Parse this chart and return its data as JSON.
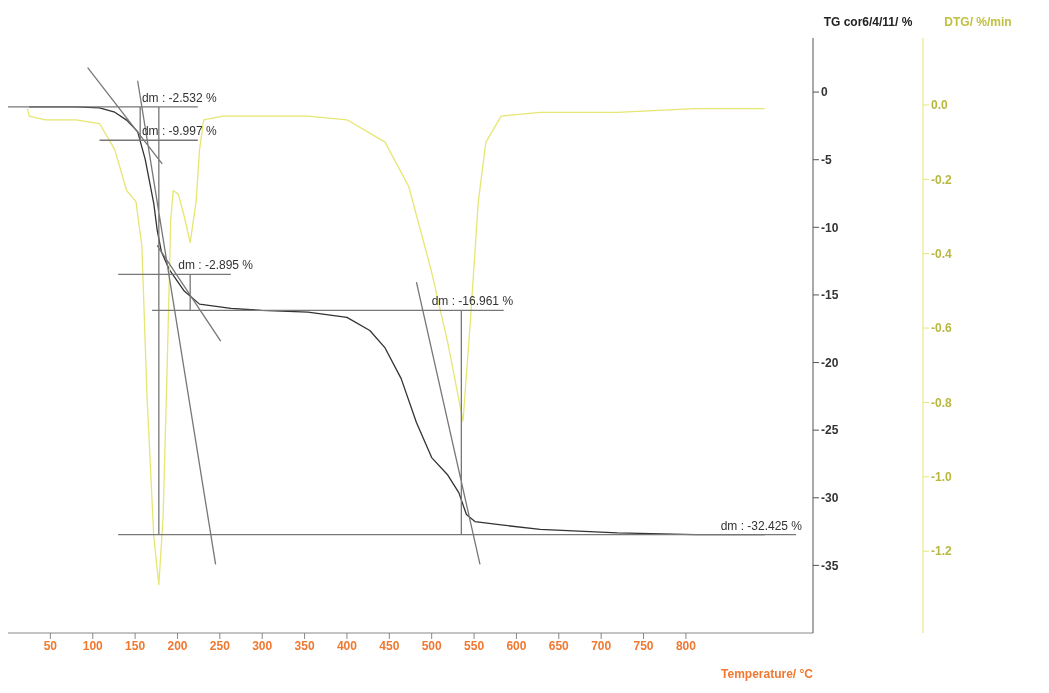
{
  "chart_data": {
    "type": "line",
    "xlabel": "Temperature/ °C",
    "ylabel": "TG cor6/4/11/ %",
    "y2label": "DTG/ %/min",
    "xlim": [
      0,
      950
    ],
    "xticks": [
      50,
      100,
      150,
      200,
      250,
      300,
      350,
      400,
      450,
      500,
      550,
      600,
      650,
      700,
      750,
      800
    ],
    "ylim": [
      -40,
      4
    ],
    "yticks": [
      0,
      -5,
      -10,
      -15,
      -20,
      -25,
      -30,
      -35
    ],
    "y2lim": [
      -1.42,
      0.18
    ],
    "y2ticks": [
      {
        "value": 0,
        "label": "0.0"
      },
      -0.2,
      -0.4,
      -0.6,
      -0.8,
      {
        "value": -1,
        "label": "-1.0"
      },
      -1.2
    ],
    "marker": "none",
    "line_style": "solid",
    "series": [
      {
        "color": "#333333",
        "x": [
          25,
          80,
          108,
          126,
          140,
          153,
          162,
          172,
          176,
          181,
          190,
          208,
          226,
          263,
          299,
          354,
          400,
          427,
          445,
          464,
          482,
          500,
          519,
          532,
          541,
          551,
          582,
          628,
          719,
          811,
          893
        ],
        "values": [
          -1.1,
          -1.1,
          -1.17,
          -1.49,
          -2.07,
          -2.92,
          -4.99,
          -8.23,
          -10.18,
          -11.8,
          -13.09,
          -14.71,
          -15.68,
          -16.0,
          -16.14,
          -16.27,
          -16.66,
          -17.63,
          -18.92,
          -21.19,
          -24.43,
          -27.03,
          -28.32,
          -29.62,
          -31.24,
          -31.76,
          -32.01,
          -32.34,
          -32.6,
          -32.73,
          -32.73
        ]
      },
      {
        "color": "#e6e673",
        "axis": "y2",
        "x": [
          23,
          25,
          44,
          80,
          108,
          126,
          140,
          151,
          158,
          164,
          172,
          178,
          183,
          188,
          192,
          195,
          201,
          208,
          215,
          222,
          226,
          231,
          254,
          308,
          354,
          400,
          445,
          473,
          500,
          519,
          537,
          546,
          555,
          564,
          582,
          628,
          719,
          811,
          893
        ],
        "values": [
          -0.01,
          -0.03,
          -0.04,
          -0.04,
          -0.05,
          -0.12,
          -0.23,
          -0.26,
          -0.38,
          -0.78,
          -1.16,
          -1.29,
          -1.11,
          -0.69,
          -0.31,
          -0.23,
          -0.24,
          -0.3,
          -0.37,
          -0.26,
          -0.12,
          -0.04,
          -0.03,
          -0.03,
          -0.03,
          -0.04,
          -0.1,
          -0.22,
          -0.45,
          -0.64,
          -0.85,
          -0.57,
          -0.26,
          -0.1,
          -0.03,
          -0.02,
          -0.02,
          -0.01,
          -0.01
        ]
      },
      {
        "color": "#777777",
        "x": [
          0,
          224,
          null,
          108,
          224,
          null,
          130,
          263,
          null,
          170,
          585,
          null,
          130,
          930,
          null,
          94,
          182,
          null,
          153,
          245,
          null,
          176,
          251,
          null,
          482,
          557,
          null,
          178,
          178,
          null,
          156,
          156,
          null,
          215,
          215,
          null,
          535,
          535
        ],
        "values": [
          -1.1,
          -1.1,
          null,
          -3.56,
          -3.56,
          null,
          -13.48,
          -13.48,
          null,
          -16.14,
          -16.14,
          null,
          -32.73,
          -32.73,
          null,
          1.81,
          -5.31,
          null,
          0.84,
          -34.93,
          null,
          -11.34,
          -18.41,
          null,
          -14.06,
          -34.93,
          null,
          -1.1,
          -32.73,
          null,
          -1.1,
          -3.56,
          null,
          -13.48,
          -16.14,
          null,
          -16.14,
          -32.73
        ]
      }
    ],
    "annotations": [
      {
        "text": "dm : -2.532 %",
        "x": 158,
        "y": -1.1
      },
      {
        "text": "dm : -9.997 %",
        "x": 158,
        "y": -3.56
      },
      {
        "text": "dm : -2.895 %",
        "x": 201,
        "y": -13.48
      },
      {
        "text": "dm : -16.961 %",
        "x": 500,
        "y": -16.14
      },
      {
        "text": "dm : -32.425 %",
        "x": 841,
        "y": -32.73
      }
    ]
  }
}
